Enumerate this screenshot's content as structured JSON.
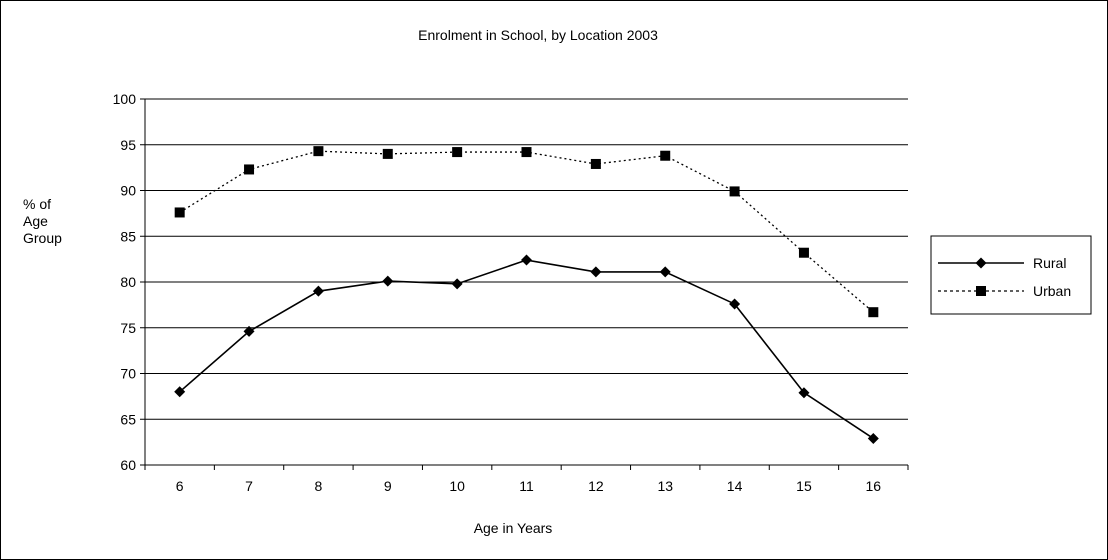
{
  "chart_data": {
    "type": "line",
    "title": "Enrolment in School, by Location 2003",
    "xlabel": "Age in Years",
    "ylabel": "% of\nAge\nGroup",
    "categories": [
      "6",
      "7",
      "8",
      "9",
      "10",
      "11",
      "12",
      "13",
      "14",
      "15",
      "16"
    ],
    "ylim": [
      60,
      100
    ],
    "yticks": [
      60,
      65,
      70,
      75,
      80,
      85,
      90,
      95,
      100
    ],
    "grid": true,
    "legend_position": "right",
    "series": [
      {
        "name": "Rural",
        "marker": "diamond",
        "line_style": "solid",
        "color": "#000000",
        "values": [
          68.0,
          74.6,
          79.0,
          80.1,
          79.8,
          82.4,
          81.1,
          81.1,
          77.6,
          67.9,
          62.9
        ]
      },
      {
        "name": "Urban",
        "marker": "square",
        "line_style": "dotted",
        "color": "#000000",
        "values": [
          87.6,
          92.3,
          94.3,
          94.0,
          94.2,
          94.2,
          92.9,
          93.8,
          89.9,
          83.2,
          76.7
        ]
      }
    ]
  }
}
